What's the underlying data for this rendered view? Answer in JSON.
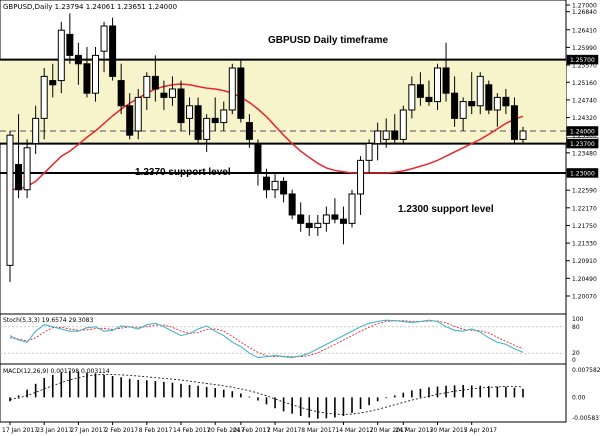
{
  "window": {
    "symbol_header": "GBPUSD,Daily  1.23794 1.24061 1.23651 1.24000",
    "title": "GBPUSD Daily timeframe"
  },
  "annotations": {
    "support_1237": "1.2370 support level",
    "support_1230": "1.2300 support level"
  },
  "price_axis": {
    "ticks": [
      "1.27000",
      "1.26840",
      "1.26410",
      "1.25990",
      "1.25570",
      "1.25160",
      "1.24740",
      "1.24320",
      "1.23900",
      "1.23480",
      "1.23060",
      "1.22590",
      "1.22170",
      "1.21750",
      "1.21330",
      "1.20910",
      "1.20490",
      "1.20070"
    ],
    "badges": {
      "upper": "1.25700",
      "current": "1.24000",
      "small": "1.23879",
      "lower_support": "1.23700",
      "bottom_support": "1.23000"
    }
  },
  "stochastic": {
    "label": "Stoch(5,3,3) 19.6574 29.3083",
    "ticks": [
      "100",
      "80",
      "20",
      "0"
    ]
  },
  "macd": {
    "label": "MACD(12,26,9) 0.001798 0.003114",
    "ticks": [
      "0.007582",
      "0.00",
      "-0.005837"
    ]
  },
  "time_axis": {
    "labels": [
      "17 Jan 2017",
      "23 Jan 2017",
      "27 Jan 2017",
      "2 Feb 2017",
      "8 Feb 2017",
      "14 Feb 2017",
      "20 Feb 2017",
      "24 Feb 2017",
      "2 Mar 2017",
      "8 Mar 2017",
      "14 Mar 2017",
      "20 Mar 2017",
      "24 Mar 2017",
      "30 Mar 2017",
      "5 Apr 2017"
    ]
  },
  "colors": {
    "range_fill": "#f7f4cc",
    "moving_average": "#e8262e",
    "stoch_main": "#45b5c8",
    "stoch_signal": "#e8262e",
    "candles": "#000000"
  },
  "candles": [
    {
      "o": 1.208,
      "h": 1.24,
      "l": 1.204,
      "c": 1.239
    },
    {
      "o": 1.232,
      "h": 1.244,
      "l": 1.224,
      "c": 1.226
    },
    {
      "o": 1.226,
      "h": 1.238,
      "l": 1.224,
      "c": 1.236
    },
    {
      "o": 1.237,
      "h": 1.246,
      "l": 1.2345,
      "c": 1.243
    },
    {
      "o": 1.243,
      "h": 1.255,
      "l": 1.238,
      "c": 1.253
    },
    {
      "o": 1.252,
      "h": 1.256,
      "l": 1.248,
      "c": 1.251
    },
    {
      "o": 1.252,
      "h": 1.266,
      "l": 1.249,
      "c": 1.264
    },
    {
      "o": 1.263,
      "h": 1.268,
      "l": 1.256,
      "c": 1.258
    },
    {
      "o": 1.258,
      "h": 1.261,
      "l": 1.251,
      "c": 1.256
    },
    {
      "o": 1.256,
      "h": 1.26,
      "l": 1.248,
      "c": 1.249
    },
    {
      "o": 1.249,
      "h": 1.26,
      "l": 1.247,
      "c": 1.258
    },
    {
      "o": 1.259,
      "h": 1.266,
      "l": 1.254,
      "c": 1.265
    },
    {
      "o": 1.265,
      "h": 1.267,
      "l": 1.252,
      "c": 1.253
    },
    {
      "o": 1.252,
      "h": 1.256,
      "l": 1.244,
      "c": 1.246
    },
    {
      "o": 1.246,
      "h": 1.249,
      "l": 1.238,
      "c": 1.239
    },
    {
      "o": 1.24,
      "h": 1.25,
      "l": 1.238,
      "c": 1.248
    },
    {
      "o": 1.248,
      "h": 1.254,
      "l": 1.245,
      "c": 1.253
    },
    {
      "o": 1.253,
      "h": 1.258,
      "l": 1.247,
      "c": 1.25
    },
    {
      "o": 1.249,
      "h": 1.252,
      "l": 1.245,
      "c": 1.248
    },
    {
      "o": 1.248,
      "h": 1.253,
      "l": 1.246,
      "c": 1.25
    },
    {
      "o": 1.25,
      "h": 1.252,
      "l": 1.24,
      "c": 1.242
    },
    {
      "o": 1.243,
      "h": 1.248,
      "l": 1.239,
      "c": 1.246
    },
    {
      "o": 1.246,
      "h": 1.248,
      "l": 1.237,
      "c": 1.238
    },
    {
      "o": 1.238,
      "h": 1.244,
      "l": 1.235,
      "c": 1.243
    },
    {
      "o": 1.243,
      "h": 1.248,
      "l": 1.24,
      "c": 1.242
    },
    {
      "o": 1.242,
      "h": 1.247,
      "l": 1.24,
      "c": 1.245
    },
    {
      "o": 1.245,
      "h": 1.256,
      "l": 1.244,
      "c": 1.255
    },
    {
      "o": 1.255,
      "h": 1.257,
      "l": 1.242,
      "c": 1.243
    },
    {
      "o": 1.242,
      "h": 1.244,
      "l": 1.236,
      "c": 1.238
    },
    {
      "o": 1.237,
      "h": 1.238,
      "l": 1.227,
      "c": 1.23
    },
    {
      "o": 1.229,
      "h": 1.231,
      "l": 1.224,
      "c": 1.226
    },
    {
      "o": 1.226,
      "h": 1.23,
      "l": 1.224,
      "c": 1.228
    },
    {
      "o": 1.228,
      "h": 1.229,
      "l": 1.223,
      "c": 1.225
    },
    {
      "o": 1.225,
      "h": 1.226,
      "l": 1.219,
      "c": 1.22
    },
    {
      "o": 1.22,
      "h": 1.223,
      "l": 1.216,
      "c": 1.218
    },
    {
      "o": 1.218,
      "h": 1.22,
      "l": 1.215,
      "c": 1.217
    },
    {
      "o": 1.217,
      "h": 1.22,
      "l": 1.215,
      "c": 1.218
    },
    {
      "o": 1.218,
      "h": 1.222,
      "l": 1.216,
      "c": 1.22
    },
    {
      "o": 1.22,
      "h": 1.224,
      "l": 1.218,
      "c": 1.219
    },
    {
      "o": 1.219,
      "h": 1.222,
      "l": 1.213,
      "c": 1.218
    },
    {
      "o": 1.218,
      "h": 1.226,
      "l": 1.217,
      "c": 1.225
    },
    {
      "o": 1.225,
      "h": 1.234,
      "l": 1.22,
      "c": 1.233
    },
    {
      "o": 1.233,
      "h": 1.238,
      "l": 1.23,
      "c": 1.237
    },
    {
      "o": 1.237,
      "h": 1.242,
      "l": 1.233,
      "c": 1.24
    },
    {
      "o": 1.238,
      "h": 1.243,
      "l": 1.236,
      "c": 1.24
    },
    {
      "o": 1.24,
      "h": 1.244,
      "l": 1.237,
      "c": 1.238
    },
    {
      "o": 1.238,
      "h": 1.246,
      "l": 1.237,
      "c": 1.245
    },
    {
      "o": 1.245,
      "h": 1.253,
      "l": 1.243,
      "c": 1.251
    },
    {
      "o": 1.251,
      "h": 1.254,
      "l": 1.246,
      "c": 1.248
    },
    {
      "o": 1.248,
      "h": 1.252,
      "l": 1.246,
      "c": 1.247
    },
    {
      "o": 1.247,
      "h": 1.256,
      "l": 1.245,
      "c": 1.255
    },
    {
      "o": 1.255,
      "h": 1.261,
      "l": 1.247,
      "c": 1.249
    },
    {
      "o": 1.249,
      "h": 1.253,
      "l": 1.241,
      "c": 1.243
    },
    {
      "o": 1.243,
      "h": 1.248,
      "l": 1.24,
      "c": 1.247
    },
    {
      "o": 1.247,
      "h": 1.254,
      "l": 1.244,
      "c": 1.246
    },
    {
      "o": 1.246,
      "h": 1.254,
      "l": 1.244,
      "c": 1.253
    },
    {
      "o": 1.251,
      "h": 1.252,
      "l": 1.244,
      "c": 1.245
    },
    {
      "o": 1.245,
      "h": 1.249,
      "l": 1.241,
      "c": 1.248
    },
    {
      "o": 1.248,
      "h": 1.25,
      "l": 1.244,
      "c": 1.246
    },
    {
      "o": 1.246,
      "h": 1.248,
      "l": 1.237,
      "c": 1.238
    },
    {
      "o": 1.238,
      "h": 1.241,
      "l": 1.237,
      "c": 1.24
    }
  ],
  "moving_average": [
    1.226,
    1.2262,
    1.2268,
    1.228,
    1.23,
    1.232,
    1.234,
    1.2352,
    1.2368,
    1.2385,
    1.24,
    1.2418,
    1.2436,
    1.2452,
    1.2466,
    1.2478,
    1.249,
    1.25,
    1.2506,
    1.251,
    1.2512,
    1.251,
    1.2506,
    1.2502,
    1.25,
    1.2496,
    1.249,
    1.248,
    1.2468,
    1.2452,
    1.2434,
    1.2412,
    1.239,
    1.237,
    1.2352,
    1.2337,
    1.2323,
    1.2312,
    1.2306,
    1.2303,
    1.23,
    1.23,
    1.23,
    1.23,
    1.23,
    1.2302,
    1.2305,
    1.231,
    1.2316,
    1.2322,
    1.233,
    1.234,
    1.235,
    1.236,
    1.237,
    1.238,
    1.2392,
    1.2405,
    1.2418,
    1.2428,
    1.2435
  ],
  "stoch_main": [
    60,
    50,
    45,
    70,
    85,
    80,
    75,
    70,
    70,
    78,
    80,
    70,
    72,
    82,
    80,
    75,
    85,
    88,
    80,
    70,
    60,
    65,
    75,
    82,
    70,
    60,
    45,
    35,
    20,
    10,
    12,
    15,
    12,
    10,
    14,
    20,
    30,
    40,
    50,
    60,
    70,
    80,
    88,
    92,
    95,
    94,
    92,
    90,
    92,
    95,
    92,
    80,
    72,
    70,
    75,
    68,
    55,
    45,
    40,
    30,
    22
  ],
  "stoch_signal": [
    55,
    52,
    48,
    55,
    68,
    78,
    79,
    75,
    72,
    73,
    76,
    76,
    74,
    77,
    80,
    79,
    80,
    84,
    84,
    79,
    70,
    65,
    67,
    74,
    75,
    70,
    58,
    45,
    33,
    22,
    14,
    12,
    13,
    12,
    12,
    15,
    21,
    30,
    40,
    50,
    60,
    70,
    79,
    87,
    92,
    94,
    94,
    92,
    92,
    93,
    93,
    89,
    81,
    74,
    72,
    71,
    66,
    56,
    47,
    38,
    30
  ],
  "macd_hist": [
    -0.001,
    0.0005,
    0.002,
    0.0035,
    0.005,
    0.0058,
    0.0065,
    0.0068,
    0.0067,
    0.0064,
    0.0062,
    0.0058,
    0.0055,
    0.0052,
    0.0048,
    0.0045,
    0.0044,
    0.0042,
    0.004,
    0.0038,
    0.0035,
    0.0032,
    0.003,
    0.0027,
    0.0024,
    0.002,
    0.0016,
    0.001,
    0.0002,
    -0.0008,
    -0.0018,
    -0.0028,
    -0.0036,
    -0.0042,
    -0.0048,
    -0.0052,
    -0.0055,
    -0.0054,
    -0.0052,
    -0.0048,
    -0.004,
    -0.003,
    -0.002,
    -0.001,
    -0.0002,
    0.0005,
    0.0012,
    0.0018,
    0.0022,
    0.0026,
    0.0028,
    0.003,
    0.0031,
    0.0032,
    0.0031,
    0.003,
    0.0029,
    0.0028,
    0.0027,
    0.0025,
    0.0022
  ],
  "macd_signal": [
    -0.0005,
    -0.0002,
    0.0005,
    0.0013,
    0.0022,
    0.003,
    0.0038,
    0.0045,
    0.0051,
    0.0055,
    0.0058,
    0.0059,
    0.0059,
    0.0058,
    0.0057,
    0.0055,
    0.0053,
    0.0051,
    0.0049,
    0.0047,
    0.0045,
    0.0042,
    0.0039,
    0.0036,
    0.0033,
    0.003,
    0.0026,
    0.0022,
    0.0017,
    0.0011,
    0.0004,
    -0.0004,
    -0.0012,
    -0.0019,
    -0.0026,
    -0.0032,
    -0.0037,
    -0.0041,
    -0.0043,
    -0.0044,
    -0.0043,
    -0.004,
    -0.0036,
    -0.0031,
    -0.0025,
    -0.0019,
    -0.0013,
    -0.0007,
    -0.0002,
    0.0003,
    0.0008,
    0.0012,
    0.0016,
    0.0019,
    0.0022,
    0.0024,
    0.0026,
    0.0027,
    0.0028,
    0.0028,
    0.0027
  ]
}
